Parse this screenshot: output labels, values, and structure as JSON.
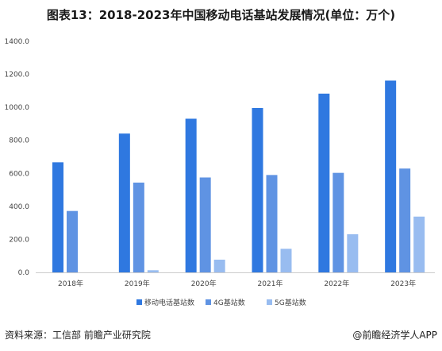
{
  "title": "图表13：2018-2023年中国移动电话基站发展情况(单位：万个)",
  "footer": {
    "source": "资料来源：工信部 前瞻产业研究院",
    "brand": "@前瞻经济学人APP"
  },
  "colors": {
    "mobile": "#2F78E0",
    "g4": "#5F93E3",
    "g5": "#98BCF0",
    "grid": "#E0E0E0"
  },
  "chart_data": {
    "type": "bar",
    "categories": [
      "2018年",
      "2019年",
      "2020年",
      "2021年",
      "2022年",
      "2023年"
    ],
    "ylim": [
      0,
      1400
    ],
    "yticks": [
      "0.0",
      "200.0",
      "400.0",
      "600.0",
      "800.0",
      "1000.0",
      "1200.0",
      "1400.0"
    ],
    "series": [
      {
        "name": "移动电话基站数",
        "values": [
          667,
          841,
          931,
          996,
          1083,
          1162
        ]
      },
      {
        "name": "4G基站数",
        "values": [
          372,
          544,
          575,
          590,
          603,
          629
        ]
      },
      {
        "name": "5G基站数",
        "values": [
          0,
          13,
          77,
          143,
          231,
          338
        ]
      }
    ],
    "legend_position": "bottom",
    "grid": false
  }
}
